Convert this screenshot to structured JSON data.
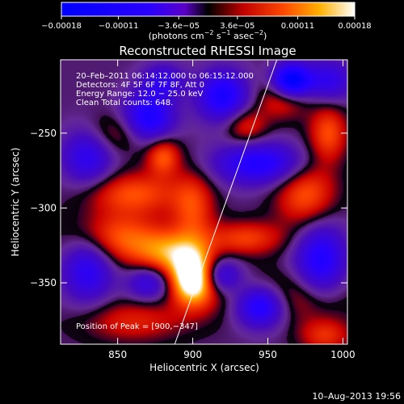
{
  "chart_data": {
    "type": "heatmap",
    "title": "Reconstructed RHESSI Image",
    "xlabel": "Heliocentric X (arcsec)",
    "ylabel": "Heliocentric Y (arcsec)",
    "xlim": [
      812,
      1003
    ],
    "ylim": [
      -391,
      -201
    ],
    "x_ticks": [
      850,
      900,
      950,
      1000
    ],
    "x_tick_labels": [
      "850",
      "900",
      "950",
      "1000"
    ],
    "y_ticks": [
      -250,
      -300,
      -350
    ],
    "y_tick_labels": [
      "−250",
      "−300",
      "−350"
    ],
    "colorbar": {
      "range": [
        -0.00018,
        0.00018
      ],
      "ticks": [
        -0.00018,
        -0.00011,
        -3.6e-05,
        3.6e-05,
        0.00011,
        0.00018
      ],
      "tick_labels": [
        "−0.00018",
        "−0.00011",
        "−3.6e−05",
        "3.6e−05",
        "0.00011",
        "0.00018"
      ],
      "units_main": "(photons cm",
      "units_exp1": "−2",
      "units_mid": " s",
      "units_exp2": "−1",
      "units_end": " asec",
      "units_exp3": "−2",
      "units_close": ")"
    },
    "annotations": {
      "time": "20–Feb–2011 06:14:12.000 to 06:15:12.000",
      "detectors": "Detectors: 4F 5F 6F 7F 8F, Att 0",
      "energy": "Energy Range: 12.0 − 25.0 keV",
      "clean": "Clean     Total counts: 648.",
      "peak": "Position of Peak = [900,−347]"
    },
    "limb_line": [
      [
        888,
        -391
      ],
      [
        956,
        -201
      ]
    ],
    "peak": [
      900,
      -347
    ],
    "blobs": [
      {
        "x": 900,
        "y": -347,
        "sx": 10,
        "sy": 12,
        "a": 1.25
      },
      {
        "x": 885,
        "y": -330,
        "sx": 16,
        "sy": 10,
        "a": 0.6
      },
      {
        "x": 850,
        "y": -320,
        "sx": 22,
        "sy": 12,
        "a": 0.55
      },
      {
        "x": 860,
        "y": -290,
        "sx": 22,
        "sy": 10,
        "a": 0.5
      },
      {
        "x": 880,
        "y": -265,
        "sx": 8,
        "sy": 9,
        "a": 0.55
      },
      {
        "x": 900,
        "y": -300,
        "sx": 10,
        "sy": 18,
        "a": 0.45
      },
      {
        "x": 935,
        "y": -320,
        "sx": 18,
        "sy": 8,
        "a": 0.45
      },
      {
        "x": 975,
        "y": -290,
        "sx": 14,
        "sy": 16,
        "a": 0.55
      },
      {
        "x": 990,
        "y": -250,
        "sx": 9,
        "sy": 14,
        "a": 0.5
      },
      {
        "x": 960,
        "y": -225,
        "sx": 12,
        "sy": 10,
        "a": 0.45
      },
      {
        "x": 935,
        "y": -245,
        "sx": 10,
        "sy": 9,
        "a": 0.4
      },
      {
        "x": 960,
        "y": -360,
        "sx": 30,
        "sy": 12,
        "a": 0.4
      },
      {
        "x": 860,
        "y": -375,
        "sx": 25,
        "sy": 10,
        "a": 0.35
      },
      {
        "x": 850,
        "y": -250,
        "sx": 16,
        "sy": 10,
        "a": 0.35
      },
      {
        "x": 988,
        "y": -385,
        "sx": 12,
        "sy": 8,
        "a": 0.4
      },
      {
        "x": 870,
        "y": -240,
        "sx": 12,
        "sy": 12,
        "a": -0.85
      },
      {
        "x": 920,
        "y": -225,
        "sx": 12,
        "sy": 12,
        "a": -0.8
      },
      {
        "x": 965,
        "y": -215,
        "sx": 9,
        "sy": 8,
        "a": -1.2
      },
      {
        "x": 945,
        "y": -270,
        "sx": 22,
        "sy": 10,
        "a": -0.75
      },
      {
        "x": 830,
        "y": -265,
        "sx": 12,
        "sy": 14,
        "a": -0.6
      },
      {
        "x": 830,
        "y": -340,
        "sx": 12,
        "sy": 16,
        "a": -0.65
      },
      {
        "x": 870,
        "y": -350,
        "sx": 10,
        "sy": 8,
        "a": -0.5
      },
      {
        "x": 945,
        "y": -365,
        "sx": 12,
        "sy": 10,
        "a": -1.0
      },
      {
        "x": 985,
        "y": -335,
        "sx": 12,
        "sy": 18,
        "a": -0.75
      },
      {
        "x": 918,
        "y": -345,
        "sx": 10,
        "sy": 8,
        "a": -0.6
      },
      {
        "x": 880,
        "y": -215,
        "sx": 10,
        "sy": 8,
        "a": -0.5
      },
      {
        "x": 990,
        "y": -215,
        "sx": 12,
        "sy": 10,
        "a": -0.55
      }
    ]
  },
  "footer": {
    "date": "10–Aug–2013 19:56"
  }
}
